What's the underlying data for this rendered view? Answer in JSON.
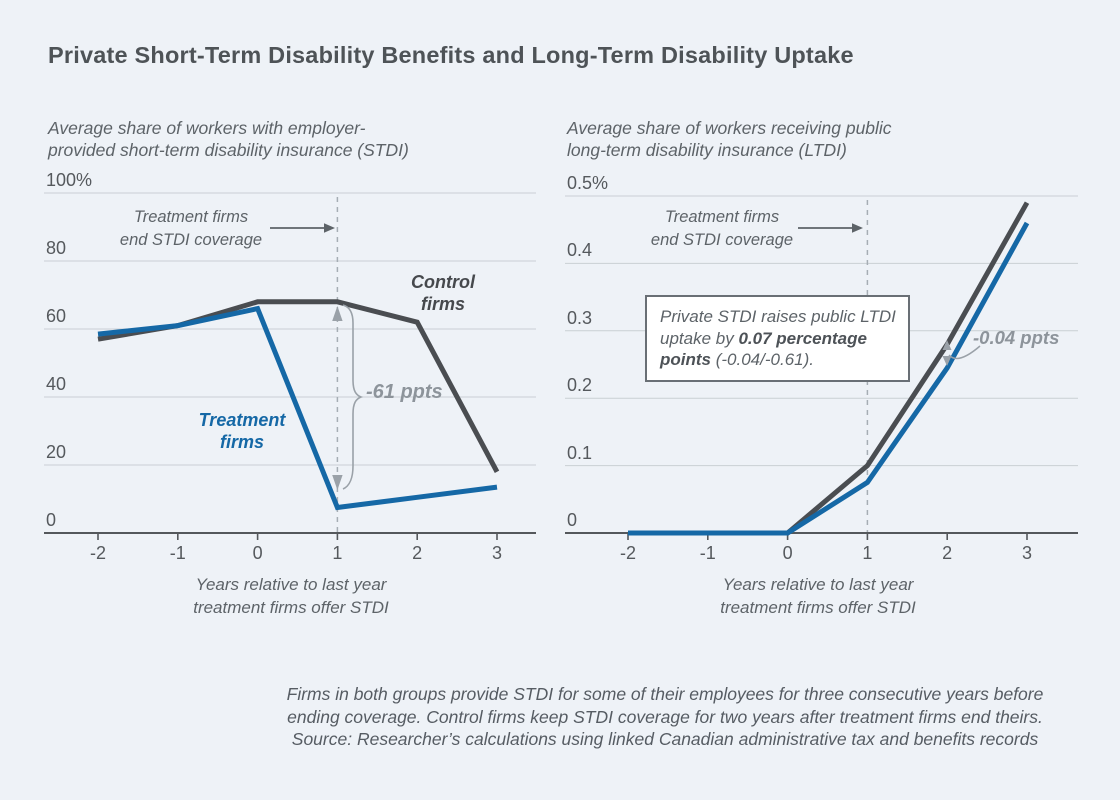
{
  "page": {
    "title": "Private Short-Term Disability Benefits and Long-Term Disability Uptake"
  },
  "left_chart": {
    "subtitle": "Average share of workers with employer-\nprovided short-term disability insurance (STDI)",
    "event_annotation": "Treatment firms\nend STDI coverage",
    "control_label": "Control\nfirms",
    "treatment_label": "Treatment\nfirms",
    "gap_label": "-61 ppts",
    "xlabel": "Years relative to last year\ntreatment firms offer STDI"
  },
  "right_chart": {
    "subtitle": "Average share of workers receiving public\nlong-term disability insurance (LTDI)",
    "event_annotation": "Treatment firms\nend STDI coverage",
    "gap_label": "-0.04 ppts",
    "callout_lines": [
      [
        {
          "t": "Private STDI raises public LTDI",
          "b": false
        }
      ],
      [
        {
          "t": "uptake by ",
          "b": false
        },
        {
          "t": "0.07 percentage",
          "b": true
        }
      ],
      [
        {
          "t": "points",
          "b": true
        },
        {
          "t": " (-0.04/-0.61).",
          "b": false
        }
      ]
    ],
    "xlabel": "Years relative to last year\ntreatment firms offer STDI"
  },
  "footer": {
    "note": "Firms in both groups provide STDI for some of their employees for three consecutive years before\nending coverage. Control firms keep STDI coverage for two years after treatment firms end theirs.\nSource: Researcher’s calculations using linked Canadian administrative tax and benefits records"
  },
  "chart_data": [
    {
      "type": "line",
      "title": "Average share of workers with employer-provided short-term disability insurance (STDI)",
      "x": [
        -2,
        -1,
        0,
        1,
        2,
        3
      ],
      "series": [
        {
          "name": "Control firms",
          "color": "#4a4d51",
          "values": [
            57,
            61,
            68,
            68,
            62,
            18
          ]
        },
        {
          "name": "Treatment firms",
          "color": "#1568a6",
          "values": [
            58.5,
            61,
            66,
            7.5,
            10.5,
            13.5
          ]
        }
      ],
      "ylim": [
        0,
        100
      ],
      "ytick_values": [
        0,
        20,
        40,
        60,
        80,
        100
      ],
      "ytick_labels": [
        "0",
        "20",
        "40",
        "60",
        "80",
        "100%"
      ],
      "xtick_labels": [
        "-2",
        "-1",
        "0",
        "1",
        "2",
        "3"
      ],
      "xlabel": "Years relative to last year treatment firms offer STDI",
      "event_line_x": 1,
      "grid": true,
      "legend_position": "inline-labels",
      "annotations": [
        "Treatment firms end STDI coverage",
        "-61 ppts"
      ]
    },
    {
      "type": "line",
      "title": "Average share of workers receiving public long-term disability insurance (LTDI)",
      "x": [
        -2,
        -1,
        0,
        1,
        2,
        3
      ],
      "series": [
        {
          "name": "Control firms",
          "color": "#4a4d51",
          "values": [
            0,
            0,
            0,
            0.1,
            0.28,
            0.49
          ]
        },
        {
          "name": "Treatment firms",
          "color": "#1568a6",
          "values": [
            0,
            0,
            0,
            0.075,
            0.245,
            0.46
          ]
        }
      ],
      "ylim": [
        0,
        0.5
      ],
      "ytick_values": [
        0,
        0.1,
        0.2,
        0.3,
        0.4,
        0.5
      ],
      "ytick_labels": [
        "0",
        "0.1",
        "0.2",
        "0.3",
        "0.4",
        "0.5%"
      ],
      "xtick_labels": [
        "-2",
        "-1",
        "0",
        "1",
        "2",
        "3"
      ],
      "xlabel": "Years relative to last year treatment firms offer STDI",
      "event_line_x": 1,
      "grid": true,
      "legend_position": "inline-labels",
      "annotations": [
        "Treatment firms end STDI coverage",
        "Private STDI raises public LTDI uptake by 0.07 percentage points (-0.04/-0.61).",
        "-0.04 ppts"
      ]
    }
  ]
}
